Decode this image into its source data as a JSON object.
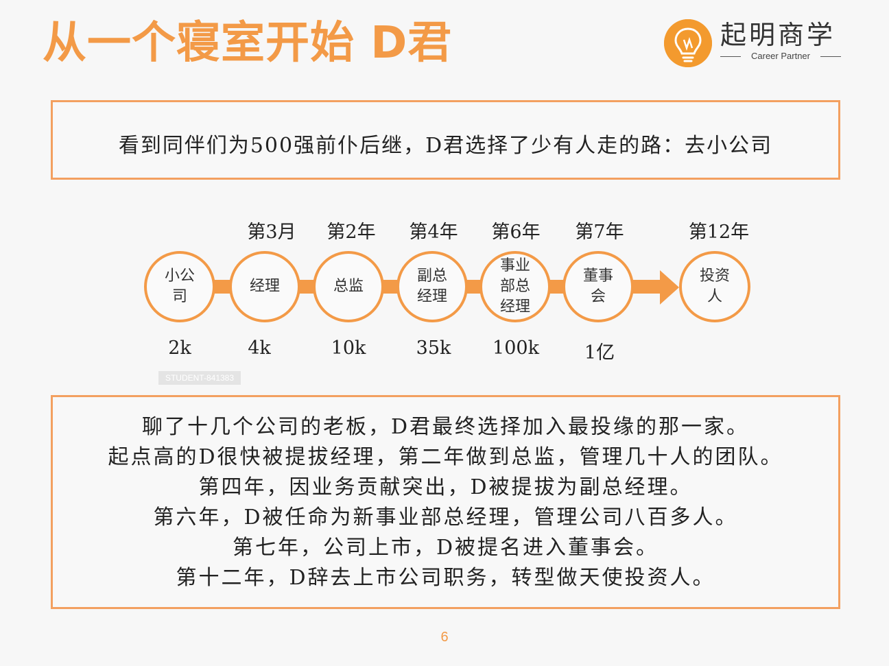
{
  "slide": {
    "title": "从一个寝室开始 D君",
    "page_number": "6",
    "watermark": "STUDENT-841383"
  },
  "logo": {
    "name": "起明商学",
    "tagline": "Career Partner"
  },
  "intro": "看到同伴们为500强前仆后继，D君选择了少有人走的路：去小公司",
  "timeline": [
    {
      "year": "",
      "role": "小公司",
      "salary": "2k"
    },
    {
      "year": "第3月",
      "role": "经理",
      "salary": "4k"
    },
    {
      "year": "第2年",
      "role": "总监",
      "salary": "10k"
    },
    {
      "year": "第4年",
      "role": "副总经理",
      "salary": "35k"
    },
    {
      "year": "第6年",
      "role": "事业部总经理",
      "salary": "100k"
    },
    {
      "year": "第7年",
      "role": "董事会",
      "salary": "1亿"
    },
    {
      "year": "第12年",
      "role": "投资人",
      "salary": ""
    }
  ],
  "story": [
    "聊了十几个公司的老板，D君最终选择加入最投缘的那一家。",
    "起点高的D很快被提拔经理，第二年做到总监，管理几十人的团队。",
    "第四年，因业务贡献突出，D被提拔为副总经理。",
    "第六年，D被任命为新事业部总经理，管理公司八百多人。",
    "第七年，公司上市，D被提名进入董事会。",
    "第十二年，D辞去上市公司职务，转型做天使投资人。"
  ]
}
